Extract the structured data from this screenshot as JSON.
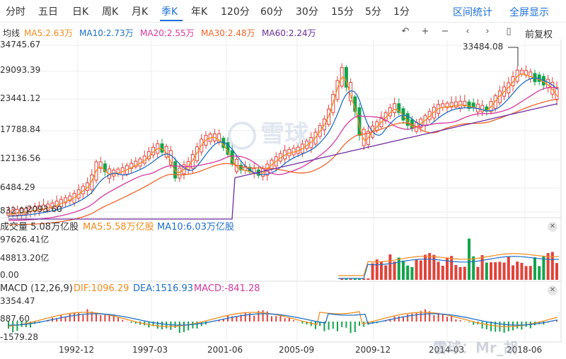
{
  "tabs": [
    "分时",
    "五日",
    "日K",
    "周K",
    "月K",
    "季K",
    "年K",
    "120分",
    "60分",
    "30分",
    "15分",
    "5分",
    "1分"
  ],
  "active_tab": "季K",
  "links": {
    "interval_stats": "区间统计",
    "fullscreen": "全屏显示"
  },
  "price_legend": {
    "label": "均线",
    "ma5": "MA5:2.63万",
    "ma10": "MA10:2.73万",
    "ma20": "MA20:2.55万",
    "ma30": "MA30:2.48万",
    "ma60": "MA60:2.24万"
  },
  "toolbar": {
    "restore_adjust": "前复权"
  },
  "colors": {
    "up": "#e2423a",
    "down": "#14a34b",
    "ma5": "#f08c1e",
    "ma10": "#1f6fc8",
    "ma20": "#d6379f",
    "ma30": "#f0642a",
    "ma60": "#6e2c9e",
    "accent": "#1c6fd8"
  },
  "price_axis": [
    "34745.67",
    "29093.39",
    "23441.12",
    "17788.84",
    "12136.56",
    "6484.29",
    "832.01"
  ],
  "low_label": "2093.60",
  "high_label": "33484.08",
  "volume_legend": {
    "label": "成交量 5.08万亿股",
    "ma5": "MA5:5.58万亿股",
    "ma10": "MA10:6.03万亿股"
  },
  "volume_axis": [
    "97626.41亿",
    "48813.20亿",
    "0.00"
  ],
  "macd_legend": {
    "label": "MACD (12,26,9)",
    "dif": "DIF:1096.29",
    "dea": "DEA:1516.93",
    "macd": "MACD:-841.28"
  },
  "macd_axis": [
    "3354.47",
    "887.60",
    "-1579.28"
  ],
  "date_axis": [
    "1992-12",
    "1997-03",
    "2001-06",
    "2005-09",
    "2009-12",
    "2014-03",
    "2018-06"
  ],
  "watermark": {
    "center": "雪球",
    "bottom": "雪球：Mr_胡"
  }
}
